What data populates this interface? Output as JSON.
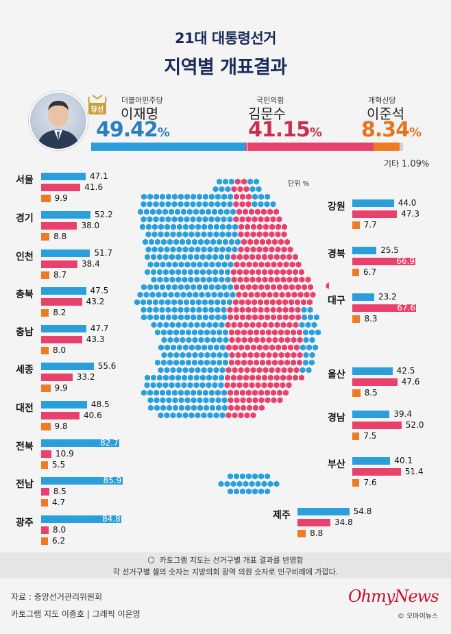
{
  "header": {
    "line1": "21대 대통령선거",
    "line2": "지역별 개표결과"
  },
  "winner_badge": "당선",
  "candidates": [
    {
      "party": "더불어민주당",
      "name": "이재명",
      "pct": "49.42",
      "share": 49.42,
      "color": "#2a9fdc"
    },
    {
      "party": "국민의힘",
      "name": "김문수",
      "pct": "41.15",
      "share": 41.15,
      "color": "#e8426c"
    },
    {
      "party": "개혁신당",
      "name": "이준석",
      "pct": "8.34",
      "share": 8.34,
      "color": "#f07a22"
    }
  ],
  "pct_unit": "%",
  "others": {
    "label": "기타",
    "value": "1.09",
    "unit": "%",
    "share": 1.09,
    "color": "#d0d0d0"
  },
  "unit_label": "단위 %",
  "chart_data": {
    "type": "bar",
    "series": [
      {
        "name": "이재명",
        "color": "#2a9fdc"
      },
      {
        "name": "김문수",
        "color": "#e8426c"
      },
      {
        "name": "이준석",
        "color": "#f07a22"
      }
    ],
    "regions": [
      {
        "name": "서울",
        "values": [
          47.1,
          41.6,
          9.9
        ]
      },
      {
        "name": "경기",
        "values": [
          52.2,
          38.0,
          8.8
        ]
      },
      {
        "name": "인천",
        "values": [
          51.7,
          38.4,
          8.7
        ]
      },
      {
        "name": "충북",
        "values": [
          47.5,
          43.2,
          8.2
        ]
      },
      {
        "name": "충남",
        "values": [
          47.7,
          43.3,
          8.0
        ]
      },
      {
        "name": "세종",
        "values": [
          55.6,
          33.2,
          9.9
        ]
      },
      {
        "name": "대전",
        "values": [
          48.5,
          40.6,
          9.8
        ]
      },
      {
        "name": "전북",
        "values": [
          82.7,
          10.9,
          5.5
        ]
      },
      {
        "name": "전남",
        "values": [
          85.9,
          8.5,
          4.7
        ]
      },
      {
        "name": "광주",
        "values": [
          84.8,
          8.0,
          6.2
        ]
      },
      {
        "name": "강원",
        "values": [
          44.0,
          47.3,
          7.7
        ]
      },
      {
        "name": "경북",
        "values": [
          25.5,
          66.9,
          6.7
        ]
      },
      {
        "name": "대구",
        "values": [
          23.2,
          67.6,
          8.3
        ]
      },
      {
        "name": "울산",
        "values": [
          42.5,
          47.6,
          8.5
        ]
      },
      {
        "name": "경남",
        "values": [
          39.4,
          52.0,
          7.5
        ]
      },
      {
        "name": "부산",
        "values": [
          40.1,
          51.4,
          7.6
        ]
      },
      {
        "name": "제주",
        "values": [
          54.8,
          34.8,
          8.8
        ]
      }
    ]
  },
  "footer": {
    "note1": "카토그램 지도는 선거구별 개표 결과를 반영함",
    "note2": "각 선거구별 셀의 숫자는 지방의회 광역 의원 숫자로 인구비례에 가깝다.",
    "source": "자료 : 중앙선거관리위원회",
    "credit": "카토그램 지도 이종호 | 그래픽 이은영",
    "logo": "OhmyNews",
    "copyright": "© 오마이뉴스"
  }
}
